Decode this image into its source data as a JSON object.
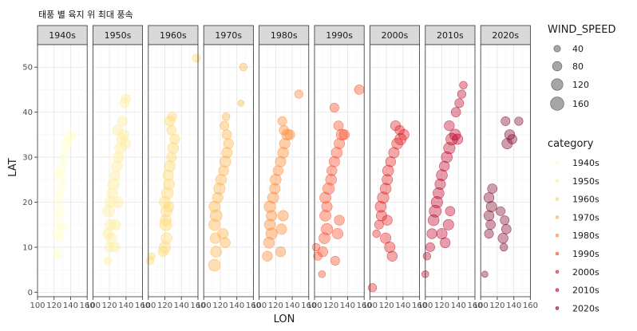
{
  "chart_data": {
    "type": "scatter",
    "title": "태풍 별 육지 위 최대 풍속",
    "xlabel": "LON",
    "ylabel": "LAT",
    "xlim": [
      100,
      160
    ],
    "ylim": [
      -1,
      55
    ],
    "x_ticks": [
      100,
      120,
      140,
      160
    ],
    "x_tick_labels": [
      "100",
      "120",
      "140",
      "160"
    ],
    "y_ticks": [
      0,
      10,
      20,
      30,
      40,
      50
    ],
    "y_tick_labels": [
      "0",
      "10",
      "20",
      "30",
      "40",
      "50"
    ],
    "grid": true,
    "facet_by": "category",
    "size_by": "WIND_SPEED",
    "legend": {
      "position": "right",
      "size_title": "WIND_SPEED",
      "size_values": [
        40,
        80,
        120,
        160
      ],
      "size_labels": [
        "40",
        "80",
        "120",
        "160"
      ],
      "color_title": "category"
    },
    "series": [
      {
        "name": "1940s",
        "color": "#ffffcc",
        "opacity": 0.45,
        "points": [
          [
            124,
            9,
            60
          ],
          [
            126,
            12,
            70
          ],
          [
            127,
            15,
            75
          ],
          [
            124,
            17,
            65
          ],
          [
            128,
            18,
            85
          ],
          [
            125,
            20,
            60
          ],
          [
            127,
            22,
            90
          ],
          [
            129,
            24,
            70
          ],
          [
            126,
            26,
            80
          ],
          [
            128,
            27,
            75
          ],
          [
            131,
            29,
            90
          ],
          [
            133,
            31,
            85
          ],
          [
            135,
            33,
            100
          ],
          [
            138,
            34,
            90
          ],
          [
            141,
            35,
            80
          ],
          [
            122,
            13,
            55
          ],
          [
            129,
            14,
            75
          ],
          [
            125,
            8,
            50
          ]
        ]
      },
      {
        "name": "1950s",
        "color": "#ffeda0",
        "opacity": 0.45,
        "points": [
          [
            118,
            7,
            60
          ],
          [
            120,
            10,
            90
          ],
          [
            122,
            12,
            120
          ],
          [
            121,
            15,
            110
          ],
          [
            119,
            18,
            140
          ],
          [
            121,
            20,
            120
          ],
          [
            123,
            22,
            110
          ],
          [
            125,
            24,
            130
          ],
          [
            127,
            26,
            100
          ],
          [
            129,
            28,
            120
          ],
          [
            131,
            30,
            110
          ],
          [
            133,
            32,
            130
          ],
          [
            135,
            34,
            120
          ],
          [
            137,
            35,
            100
          ],
          [
            139,
            33,
            110
          ],
          [
            136,
            38,
            100
          ],
          [
            138,
            42,
            90
          ],
          [
            140,
            43,
            80
          ],
          [
            118,
            13,
            100
          ],
          [
            127,
            15,
            110
          ],
          [
            130,
            20,
            120
          ],
          [
            127,
            10,
            90
          ],
          [
            130,
            36,
            100
          ]
        ]
      },
      {
        "name": "1960s",
        "color": "#fed976",
        "opacity": 0.45,
        "points": [
          [
            102,
            7,
            60
          ],
          [
            104,
            8,
            50
          ],
          [
            118,
            9,
            100
          ],
          [
            120,
            10,
            130
          ],
          [
            122,
            12,
            120
          ],
          [
            121,
            15,
            140
          ],
          [
            122,
            18,
            130
          ],
          [
            120,
            20,
            120
          ],
          [
            123,
            22,
            140
          ],
          [
            125,
            24,
            120
          ],
          [
            124,
            26,
            110
          ],
          [
            126,
            28,
            120
          ],
          [
            128,
            30,
            100
          ],
          [
            130,
            32,
            120
          ],
          [
            132,
            34,
            100
          ],
          [
            128,
            36,
            90
          ],
          [
            126,
            38,
            100
          ],
          [
            129,
            39,
            80
          ],
          [
            158,
            52,
            70
          ],
          [
            121,
            16,
            120
          ],
          [
            125,
            19,
            100
          ]
        ]
      },
      {
        "name": "1970s",
        "color": "#feb24c",
        "opacity": 0.42,
        "points": [
          [
            113,
            6,
            140
          ],
          [
            115,
            9,
            120
          ],
          [
            114,
            12,
            110
          ],
          [
            113,
            15,
            130
          ],
          [
            115,
            17,
            140
          ],
          [
            113,
            19,
            120
          ],
          [
            117,
            21,
            110
          ],
          [
            119,
            23,
            130
          ],
          [
            121,
            25,
            120
          ],
          [
            124,
            27,
            100
          ],
          [
            126,
            29,
            120
          ],
          [
            128,
            31,
            110
          ],
          [
            130,
            33,
            100
          ],
          [
            128,
            35,
            90
          ],
          [
            125,
            37,
            80
          ],
          [
            127,
            39,
            60
          ],
          [
            145,
            42,
            40
          ],
          [
            148,
            50,
            60
          ],
          [
            123,
            13,
            110
          ],
          [
            126,
            11,
            100
          ]
        ]
      },
      {
        "name": "1980s",
        "color": "#fd8d3c",
        "opacity": 0.42,
        "points": [
          [
            110,
            8,
            100
          ],
          [
            112,
            11,
            120
          ],
          [
            115,
            13,
            130
          ],
          [
            113,
            15,
            120
          ],
          [
            115,
            17,
            110
          ],
          [
            113,
            19,
            130
          ],
          [
            117,
            21,
            120
          ],
          [
            119,
            23,
            110
          ],
          [
            120,
            25,
            120
          ],
          [
            123,
            27,
            100
          ],
          [
            126,
            29,
            110
          ],
          [
            129,
            31,
            120
          ],
          [
            131,
            33,
            110
          ],
          [
            134,
            35,
            120
          ],
          [
            137,
            35,
            100
          ],
          [
            128,
            38,
            80
          ],
          [
            130,
            36,
            90
          ],
          [
            148,
            44,
            70
          ],
          [
            126,
            9,
            100
          ],
          [
            127,
            14,
            110
          ],
          [
            129,
            17,
            110
          ]
        ]
      },
      {
        "name": "1990s",
        "color": "#fc4e2a",
        "opacity": 0.4,
        "points": [
          [
            102,
            10,
            60
          ],
          [
            104,
            8,
            70
          ],
          [
            110,
            9,
            100
          ],
          [
            112,
            12,
            120
          ],
          [
            115,
            14,
            130
          ],
          [
            113,
            17,
            120
          ],
          [
            115,
            19,
            110
          ],
          [
            113,
            21,
            120
          ],
          [
            117,
            23,
            130
          ],
          [
            120,
            25,
            120
          ],
          [
            121,
            27,
            100
          ],
          [
            124,
            29,
            110
          ],
          [
            127,
            31,
            120
          ],
          [
            130,
            33,
            110
          ],
          [
            133,
            35,
            120
          ],
          [
            136,
            35,
            100
          ],
          [
            129,
            37,
            90
          ],
          [
            124,
            41,
            80
          ],
          [
            154,
            45,
            90
          ],
          [
            109,
            4,
            50
          ],
          [
            125,
            7,
            80
          ],
          [
            128,
            13,
            110
          ],
          [
            130,
            16,
            100
          ]
        ]
      },
      {
        "name": "2000s",
        "color": "#e31a1c",
        "opacity": 0.38,
        "points": [
          [
            103,
            1,
            70
          ],
          [
            108,
            13,
            60
          ],
          [
            111,
            15,
            80
          ],
          [
            114,
            17,
            110
          ],
          [
            113,
            19,
            120
          ],
          [
            116,
            21,
            130
          ],
          [
            119,
            23,
            120
          ],
          [
            121,
            25,
            110
          ],
          [
            122,
            27,
            120
          ],
          [
            125,
            29,
            100
          ],
          [
            129,
            31,
            110
          ],
          [
            133,
            33,
            120
          ],
          [
            137,
            34,
            130
          ],
          [
            141,
            35,
            110
          ],
          [
            136,
            36,
            90
          ],
          [
            131,
            37,
            100
          ],
          [
            119,
            12,
            110
          ],
          [
            121,
            16,
            100
          ],
          [
            124,
            10,
            110
          ],
          [
            127,
            8,
            100
          ]
        ]
      },
      {
        "name": "2010s",
        "color": "#bd0026",
        "opacity": 0.38,
        "points": [
          [
            100,
            4,
            50
          ],
          [
            102,
            8,
            60
          ],
          [
            106,
            10,
            80
          ],
          [
            108,
            13,
            100
          ],
          [
            110,
            16,
            120
          ],
          [
            112,
            18,
            140
          ],
          [
            114,
            20,
            130
          ],
          [
            116,
            22,
            120
          ],
          [
            118,
            24,
            110
          ],
          [
            120,
            26,
            120
          ],
          [
            123,
            28,
            100
          ],
          [
            126,
            30,
            120
          ],
          [
            129,
            32,
            130
          ],
          [
            132,
            34,
            140
          ],
          [
            136,
            35,
            120
          ],
          [
            139,
            34,
            110
          ],
          [
            129,
            37,
            100
          ],
          [
            137,
            40,
            90
          ],
          [
            141,
            42,
            80
          ],
          [
            144,
            44,
            70
          ],
          [
            146,
            46,
            60
          ],
          [
            120,
            13,
            110
          ],
          [
            124,
            11,
            100
          ],
          [
            128,
            15,
            110
          ],
          [
            130,
            18,
            90
          ]
        ]
      },
      {
        "name": "2020s",
        "color": "#800026",
        "opacity": 0.38,
        "points": [
          [
            105,
            4,
            40
          ],
          [
            110,
            13,
            80
          ],
          [
            112,
            15,
            90
          ],
          [
            110,
            17,
            100
          ],
          [
            113,
            19,
            110
          ],
          [
            110,
            21,
            100
          ],
          [
            114,
            23,
            90
          ],
          [
            127,
            12,
            100
          ],
          [
            131,
            14,
            90
          ],
          [
            129,
            16,
            80
          ],
          [
            132,
            33,
            110
          ],
          [
            135,
            35,
            100
          ],
          [
            138,
            34,
            90
          ],
          [
            130,
            38,
            80
          ],
          [
            146,
            38,
            70
          ],
          [
            128,
            10,
            60
          ],
          [
            124,
            18,
            80
          ]
        ]
      }
    ]
  }
}
